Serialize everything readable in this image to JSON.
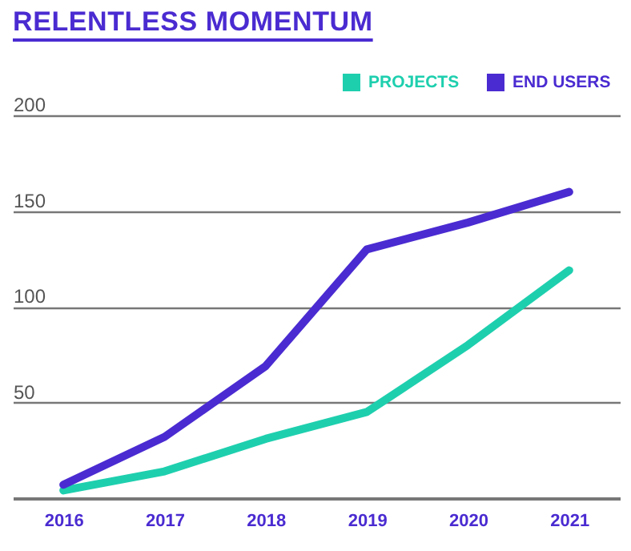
{
  "chart_data": {
    "type": "line",
    "title": "RELENTLESS MOMENTUM",
    "categories": [
      "2016",
      "2017",
      "2018",
      "2019",
      "2020",
      "2021"
    ],
    "series": [
      {
        "name": "PROJECTS",
        "color": "#1ecfae",
        "values": [
          4,
          14,
          31,
          45,
          80,
          119
        ]
      },
      {
        "name": "END USERS",
        "color": "#4a2bd1",
        "values": [
          7,
          32,
          69,
          130,
          144,
          160
        ]
      }
    ],
    "ylim": [
      0,
      200
    ],
    "yticks": [
      {
        "value": 0,
        "label": null
      },
      50,
      100,
      150,
      200
    ],
    "grid": "y",
    "legend": "top right",
    "line_style": "solid",
    "marker": "none"
  }
}
